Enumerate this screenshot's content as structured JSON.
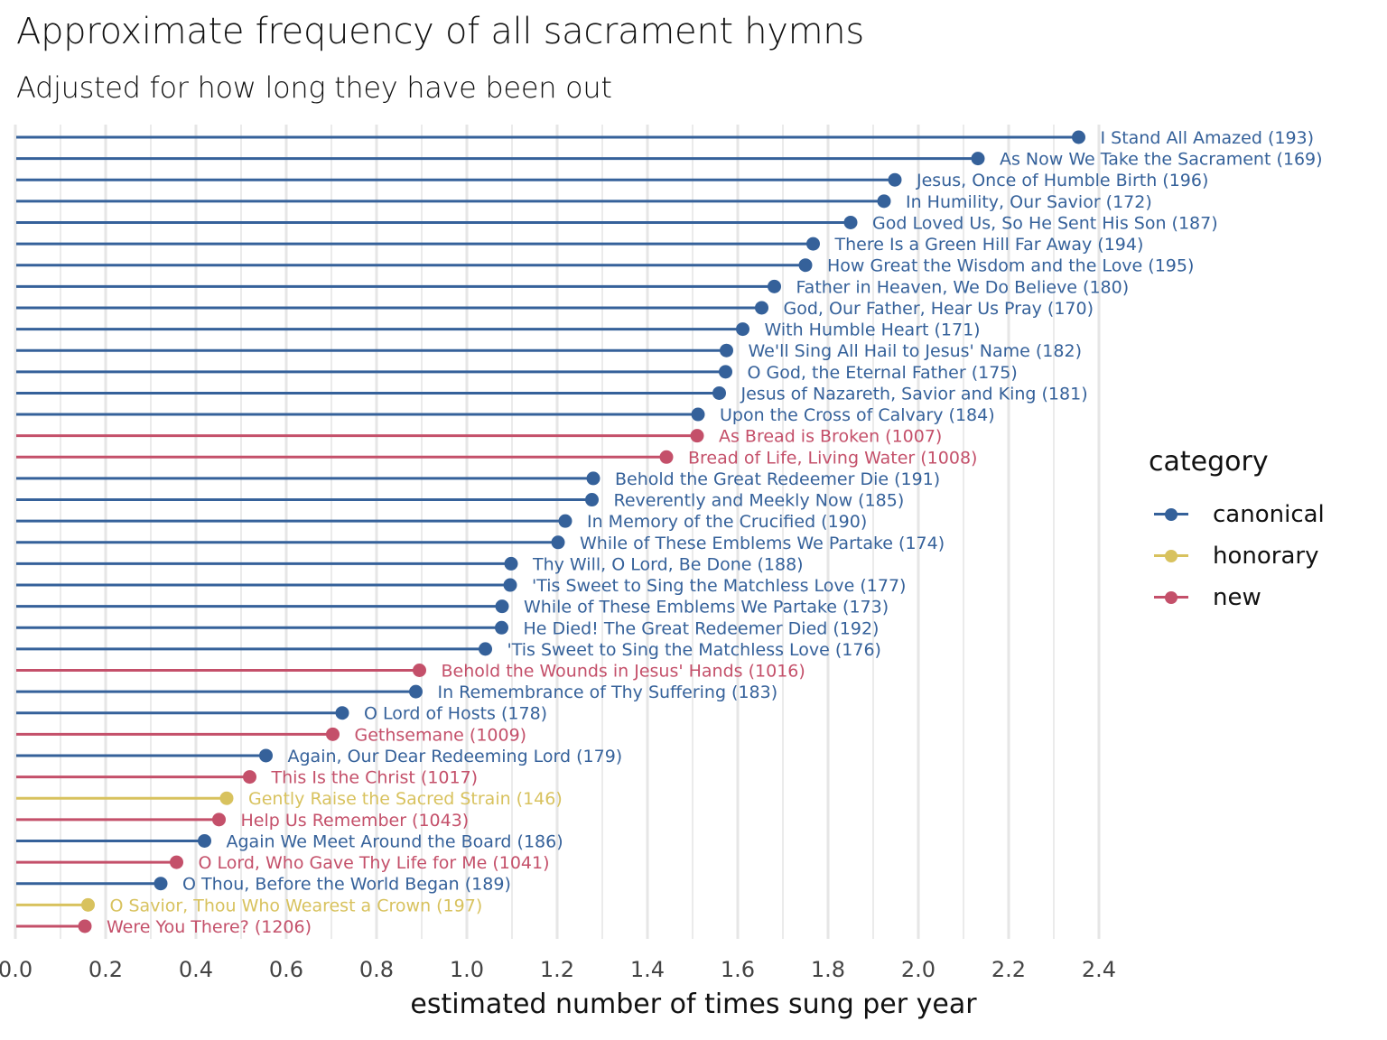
{
  "header": {
    "title": "Approximate frequency of all sacrament hymns",
    "subtitle": "Adjusted for how long they have been out"
  },
  "legend": {
    "title": "category",
    "items": [
      {
        "key": "canonical",
        "label": "canonical",
        "color": "#35619A"
      },
      {
        "key": "honorary",
        "label": "honorary",
        "color": "#D8C25E"
      },
      {
        "key": "new",
        "label": "new",
        "color": "#C4506A"
      }
    ]
  },
  "chart_data": {
    "type": "lollipop",
    "title": "Approximate frequency of all sacrament hymns",
    "subtitle": "Adjusted for how long they have been out",
    "xlabel": "estimated number of times sung per year",
    "ylabel": "",
    "xlim": [
      0,
      2.4
    ],
    "x_ticks": [
      "0.0",
      "0.2",
      "0.4",
      "0.6",
      "0.8",
      "1.0",
      "1.2",
      "1.4",
      "1.6",
      "1.8",
      "2.0",
      "2.2",
      "2.4"
    ],
    "x_tick_values": [
      0,
      0.2,
      0.4,
      0.6,
      0.8,
      1.0,
      1.2,
      1.4,
      1.6,
      1.8,
      2.0,
      2.2,
      2.4
    ],
    "grid": true,
    "legend_position": "right",
    "colors": {
      "canonical": "#35619A",
      "honorary": "#D8C25E",
      "new": "#C4506A"
    },
    "points": [
      {
        "label": "I Stand All Amazed (193)",
        "value": 2.355,
        "category": "canonical"
      },
      {
        "label": "As Now We Take the Sacrament (169)",
        "value": 2.132,
        "category": "canonical"
      },
      {
        "label": "Jesus, Once of Humble Birth (196)",
        "value": 1.948,
        "category": "canonical"
      },
      {
        "label": "In Humility, Our Savior (172)",
        "value": 1.924,
        "category": "canonical"
      },
      {
        "label": "God Loved Us, So He Sent His Son (187)",
        "value": 1.85,
        "category": "canonical"
      },
      {
        "label": "There Is a Green Hill Far Away (194)",
        "value": 1.767,
        "category": "canonical"
      },
      {
        "label": "How Great the Wisdom and the Love (195)",
        "value": 1.75,
        "category": "canonical"
      },
      {
        "label": "Father in Heaven, We Do Believe (180)",
        "value": 1.681,
        "category": "canonical"
      },
      {
        "label": "God, Our Father, Hear Us Pray (170)",
        "value": 1.653,
        "category": "canonical"
      },
      {
        "label": "With Humble Heart (171)",
        "value": 1.611,
        "category": "canonical"
      },
      {
        "label": "We'll Sing All Hail to Jesus' Name (182)",
        "value": 1.575,
        "category": "canonical"
      },
      {
        "label": "O God, the Eternal Father (175)",
        "value": 1.573,
        "category": "canonical"
      },
      {
        "label": "Jesus of Nazareth, Savior and King (181)",
        "value": 1.559,
        "category": "canonical"
      },
      {
        "label": "Upon the Cross of Calvary (184)",
        "value": 1.512,
        "category": "canonical"
      },
      {
        "label": "As Bread is Broken (1007)",
        "value": 1.51,
        "category": "new"
      },
      {
        "label": "Bread of Life, Living Water (1008)",
        "value": 1.442,
        "category": "new"
      },
      {
        "label": "Behold the Great Redeemer Die (191)",
        "value": 1.28,
        "category": "canonical"
      },
      {
        "label": "Reverently and Meekly Now (185)",
        "value": 1.277,
        "category": "canonical"
      },
      {
        "label": "In Memory of the Crucified (190)",
        "value": 1.218,
        "category": "canonical"
      },
      {
        "label": "While of These Emblems We Partake (174)",
        "value": 1.202,
        "category": "canonical"
      },
      {
        "label": "Thy Will, O Lord, Be Done (188)",
        "value": 1.098,
        "category": "canonical"
      },
      {
        "label": "'Tis Sweet to Sing the Matchless Love (177)",
        "value": 1.096,
        "category": "canonical"
      },
      {
        "label": "While of These Emblems We Partake (173)",
        "value": 1.078,
        "category": "canonical"
      },
      {
        "label": "He Died! The Great Redeemer Died (192)",
        "value": 1.077,
        "category": "canonical"
      },
      {
        "label": "'Tis Sweet to Sing the Matchless Love (176)",
        "value": 1.041,
        "category": "canonical"
      },
      {
        "label": "Behold the Wounds in Jesus' Hands (1016)",
        "value": 0.895,
        "category": "new"
      },
      {
        "label": "In Remembrance of Thy Suffering (183)",
        "value": 0.887,
        "category": "canonical"
      },
      {
        "label": "O Lord of Hosts (178)",
        "value": 0.724,
        "category": "canonical"
      },
      {
        "label": "Gethsemane (1009)",
        "value": 0.703,
        "category": "new"
      },
      {
        "label": "Again, Our Dear Redeeming Lord (179)",
        "value": 0.555,
        "category": "canonical"
      },
      {
        "label": "This Is the Christ (1017)",
        "value": 0.519,
        "category": "new"
      },
      {
        "label": "Gently Raise the Sacred Strain (146)",
        "value": 0.468,
        "category": "honorary"
      },
      {
        "label": "Help Us Remember (1043)",
        "value": 0.451,
        "category": "new"
      },
      {
        "label": "Again We Meet Around the Board (186)",
        "value": 0.419,
        "category": "canonical"
      },
      {
        "label": "O Lord, Who Gave Thy Life for Me (1041)",
        "value": 0.357,
        "category": "new"
      },
      {
        "label": "O Thou, Before the World Began (189)",
        "value": 0.322,
        "category": "canonical"
      },
      {
        "label": "O Savior, Thou Who Wearest a Crown (197)",
        "value": 0.161,
        "category": "honorary"
      },
      {
        "label": "Were You There? (1206)",
        "value": 0.154,
        "category": "new"
      }
    ]
  }
}
